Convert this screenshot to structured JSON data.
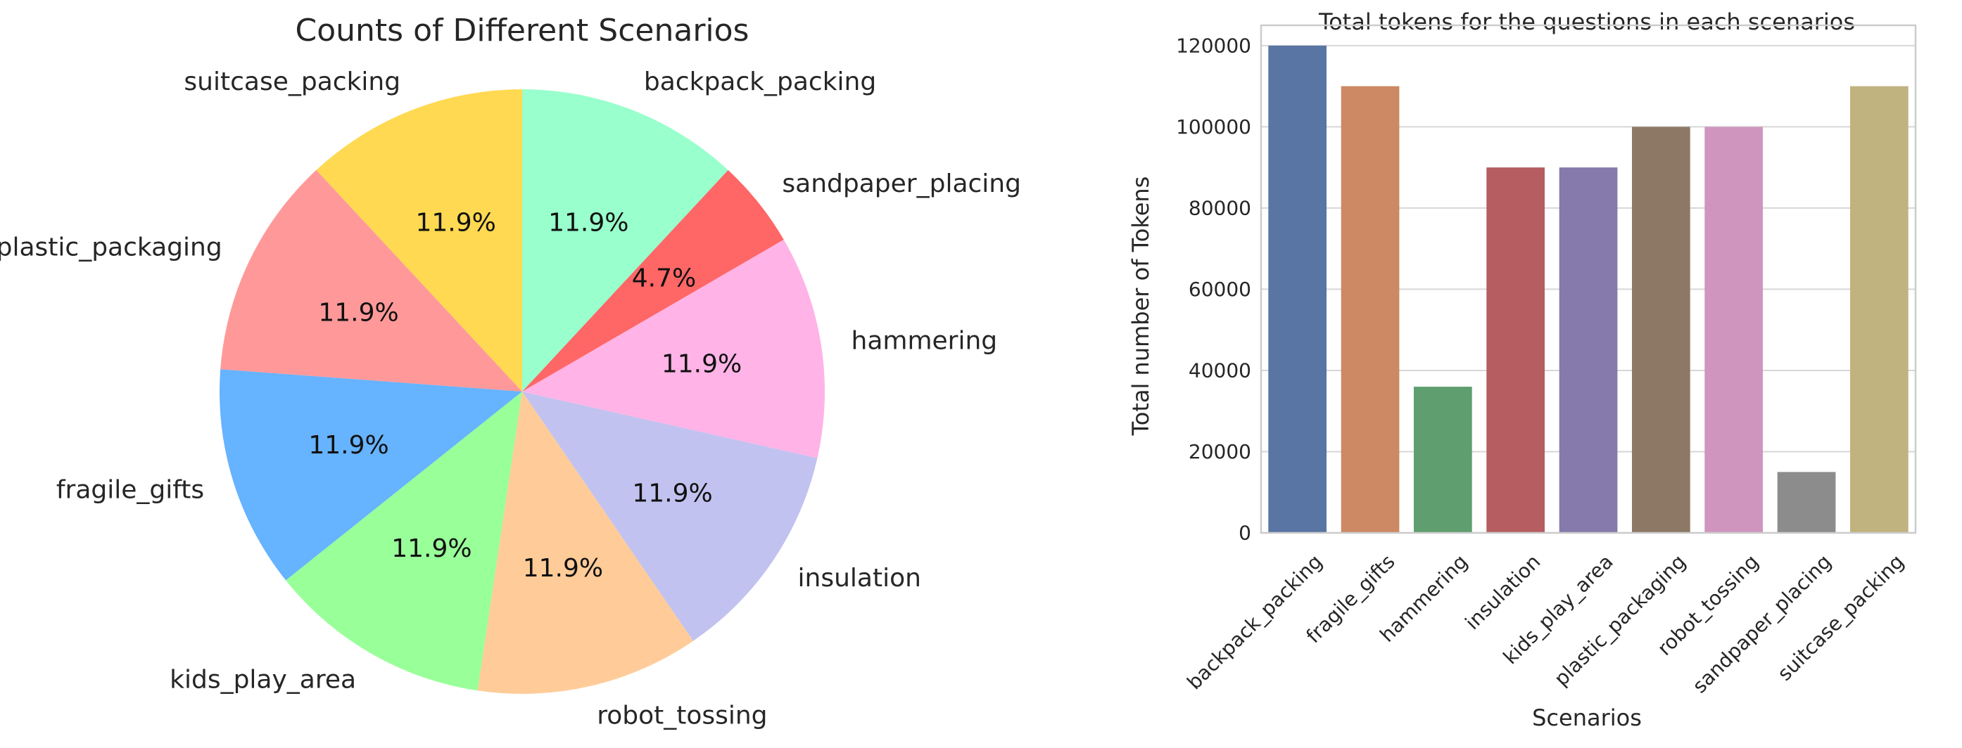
{
  "chart_data": [
    {
      "type": "pie",
      "title": "Counts of Different Scenarios",
      "start_angle_deg": 90,
      "direction": "counterclockwise",
      "labels": [
        "suitcase_packing",
        "plastic_packaging",
        "fragile_gifts",
        "kids_play_area",
        "robot_tossing",
        "insulation",
        "hammering",
        "sandpaper_placing",
        "backpack_packing"
      ],
      "percents": [
        11.9,
        11.9,
        11.9,
        11.9,
        11.9,
        11.9,
        11.9,
        4.7,
        11.9
      ],
      "colors": [
        "#ffd952",
        "#ff9999",
        "#66b3ff",
        "#99ff99",
        "#ffcc99",
        "#c2c2f0",
        "#ffb3e6",
        "#ff6666",
        "#99ffcc"
      ]
    },
    {
      "type": "bar",
      "title": "Total tokens for the questions in each scenarios",
      "xlabel": "Scenarios",
      "ylabel": "Total number of Tokens",
      "ylim": [
        0,
        125000
      ],
      "yticks": [
        0,
        20000,
        40000,
        60000,
        80000,
        100000,
        120000
      ],
      "grid": "horizontal",
      "categories": [
        "backpack_packing",
        "fragile_gifts",
        "hammering",
        "insulation",
        "kids_play_area",
        "plastic_packaging",
        "robot_tossing",
        "sandpaper_placing",
        "suitcase_packing"
      ],
      "values": [
        120000,
        110000,
        36000,
        90000,
        90000,
        100000,
        100000,
        15000,
        110000
      ],
      "colors": [
        "#5975a4",
        "#cc8963",
        "#5f9e6e",
        "#b55d60",
        "#857aab",
        "#8d7866",
        "#d095bf",
        "#8c8c8c",
        "#c1b37f"
      ]
    }
  ]
}
